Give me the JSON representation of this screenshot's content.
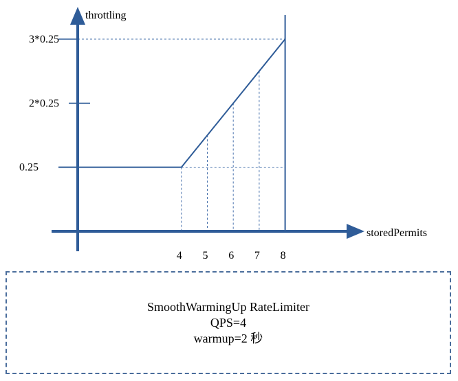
{
  "chart_data": {
    "type": "line",
    "xlabel": "storedPermits",
    "ylabel": "throttling",
    "x_ticks": [
      "4",
      "5",
      "6",
      "7",
      "8"
    ],
    "y_ticks": [
      "0.25",
      "2*0.25",
      "3*0.25"
    ],
    "xlim": [
      -0.1,
      8
    ],
    "ylim": [
      0,
      0.75
    ],
    "grid": false,
    "series": [
      {
        "x": [
          0,
          4,
          5,
          6,
          7,
          8
        ],
        "y": [
          0.25,
          0.25,
          0.375,
          0.5,
          0.625,
          0.75
        ]
      }
    ],
    "colors": {
      "axis": "#2f5c98",
      "line": "#2f5c98",
      "guide": "#4a73ad"
    }
  },
  "note": {
    "title": "SmoothWarmingUp RateLimiter",
    "qps": "QPS=4",
    "warmup": "warmup=2 秒"
  }
}
